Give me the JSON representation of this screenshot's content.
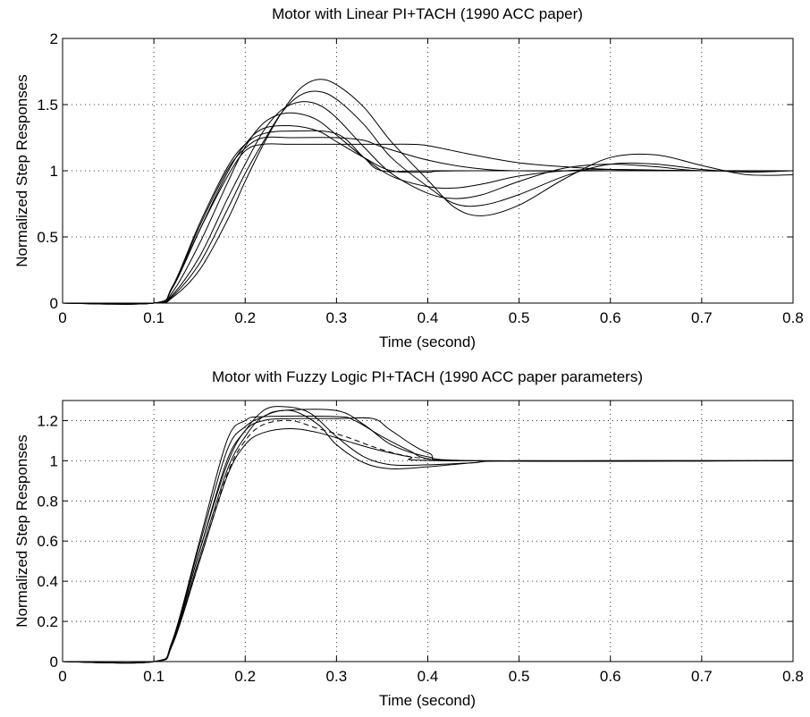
{
  "chart_data": [
    {
      "type": "line",
      "title": "Motor with Linear PI+TACH (1990 ACC paper)",
      "xlabel": "Time (second)",
      "ylabel": "Normalized Step Responses",
      "xlim": [
        0,
        0.8
      ],
      "ylim": [
        0,
        2
      ],
      "xticks": [
        "0",
        "0.1",
        "0.2",
        "0.3",
        "0.4",
        "0.5",
        "0.6",
        "0.7",
        "0.8"
      ],
      "yticks": [
        "0",
        "0.5",
        "1",
        "1.5",
        "2"
      ],
      "grid": true,
      "series": [
        {
          "values": [
            [
              0,
              0
            ],
            [
              0.1,
              0
            ],
            [
              0.12,
              0.12
            ],
            [
              0.15,
              0.55
            ],
            [
              0.18,
              0.95
            ],
            [
              0.2,
              1.15
            ],
            [
              0.22,
              1.2
            ],
            [
              0.25,
              1.2
            ],
            [
              0.3,
              1.2
            ],
            [
              0.35,
              1.2
            ],
            [
              0.38,
              1.2
            ],
            [
              0.4,
              1.19
            ],
            [
              0.45,
              1.12
            ],
            [
              0.5,
              1.06
            ],
            [
              0.55,
              1.03
            ],
            [
              0.6,
              1.01
            ],
            [
              0.7,
              1.0
            ],
            [
              0.8,
              1.0
            ]
          ]
        },
        {
          "values": [
            [
              0,
              0
            ],
            [
              0.1,
              0
            ],
            [
              0.12,
              0.12
            ],
            [
              0.15,
              0.58
            ],
            [
              0.18,
              1.0
            ],
            [
              0.2,
              1.17
            ],
            [
              0.22,
              1.25
            ],
            [
              0.25,
              1.25
            ],
            [
              0.3,
              1.25
            ],
            [
              0.33,
              1.23
            ],
            [
              0.35,
              1.18
            ],
            [
              0.4,
              1.08
            ],
            [
              0.45,
              1.02
            ],
            [
              0.5,
              1.0
            ],
            [
              0.6,
              1.0
            ],
            [
              0.8,
              1.0
            ]
          ]
        },
        {
          "values": [
            [
              0,
              0
            ],
            [
              0.1,
              0
            ],
            [
              0.12,
              0.12
            ],
            [
              0.15,
              0.6
            ],
            [
              0.18,
              1.02
            ],
            [
              0.2,
              1.2
            ],
            [
              0.22,
              1.28
            ],
            [
              0.25,
              1.3
            ],
            [
              0.3,
              1.28
            ],
            [
              0.33,
              1.1
            ],
            [
              0.35,
              1.0
            ],
            [
              0.4,
              1.0
            ],
            [
              0.6,
              1.0
            ],
            [
              0.8,
              1.0
            ]
          ]
        },
        {
          "values": [
            [
              0,
              0
            ],
            [
              0.1,
              0
            ],
            [
              0.12,
              0.11
            ],
            [
              0.15,
              0.55
            ],
            [
              0.18,
              0.98
            ],
            [
              0.2,
              1.2
            ],
            [
              0.22,
              1.32
            ],
            [
              0.25,
              1.34
            ],
            [
              0.28,
              1.3
            ],
            [
              0.3,
              1.22
            ],
            [
              0.33,
              1.1
            ],
            [
              0.36,
              1.0
            ],
            [
              0.4,
              0.99
            ],
            [
              0.45,
              1.0
            ],
            [
              0.8,
              1.0
            ]
          ]
        },
        {
          "values": [
            [
              0,
              0
            ],
            [
              0.1,
              0
            ],
            [
              0.12,
              0.08
            ],
            [
              0.15,
              0.45
            ],
            [
              0.18,
              0.9
            ],
            [
              0.2,
              1.18
            ],
            [
              0.22,
              1.36
            ],
            [
              0.24,
              1.43
            ],
            [
              0.26,
              1.43
            ],
            [
              0.28,
              1.38
            ],
            [
              0.3,
              1.27
            ],
            [
              0.33,
              1.1
            ],
            [
              0.36,
              0.96
            ],
            [
              0.4,
              0.88
            ],
            [
              0.43,
              0.87
            ],
            [
              0.46,
              0.9
            ],
            [
              0.5,
              0.96
            ],
            [
              0.55,
              1.0
            ],
            [
              0.6,
              1.01
            ],
            [
              0.7,
              1.0
            ],
            [
              0.8,
              1.0
            ]
          ]
        },
        {
          "values": [
            [
              0,
              0
            ],
            [
              0.1,
              0
            ],
            [
              0.12,
              0.06
            ],
            [
              0.15,
              0.35
            ],
            [
              0.18,
              0.78
            ],
            [
              0.2,
              1.05
            ],
            [
              0.22,
              1.3
            ],
            [
              0.24,
              1.46
            ],
            [
              0.26,
              1.52
            ],
            [
              0.28,
              1.5
            ],
            [
              0.3,
              1.4
            ],
            [
              0.33,
              1.18
            ],
            [
              0.36,
              0.98
            ],
            [
              0.4,
              0.83
            ],
            [
              0.43,
              0.79
            ],
            [
              0.46,
              0.82
            ],
            [
              0.5,
              0.92
            ],
            [
              0.55,
              1.02
            ],
            [
              0.6,
              1.05
            ],
            [
              0.65,
              1.03
            ],
            [
              0.7,
              1.0
            ],
            [
              0.8,
              1.0
            ]
          ]
        },
        {
          "values": [
            [
              0,
              0
            ],
            [
              0.1,
              0
            ],
            [
              0.12,
              0.05
            ],
            [
              0.15,
              0.3
            ],
            [
              0.18,
              0.7
            ],
            [
              0.2,
              0.98
            ],
            [
              0.22,
              1.22
            ],
            [
              0.24,
              1.44
            ],
            [
              0.26,
              1.57
            ],
            [
              0.28,
              1.6
            ],
            [
              0.3,
              1.54
            ],
            [
              0.33,
              1.35
            ],
            [
              0.36,
              1.1
            ],
            [
              0.4,
              0.88
            ],
            [
              0.43,
              0.75
            ],
            [
              0.46,
              0.74
            ],
            [
              0.5,
              0.82
            ],
            [
              0.55,
              0.96
            ],
            [
              0.6,
              1.05
            ],
            [
              0.65,
              1.05
            ],
            [
              0.7,
              1.01
            ],
            [
              0.75,
              0.99
            ],
            [
              0.8,
              1.0
            ]
          ]
        },
        {
          "values": [
            [
              0,
              0
            ],
            [
              0.1,
              0
            ],
            [
              0.12,
              0.04
            ],
            [
              0.15,
              0.25
            ],
            [
              0.18,
              0.62
            ],
            [
              0.2,
              0.92
            ],
            [
              0.22,
              1.2
            ],
            [
              0.24,
              1.44
            ],
            [
              0.26,
              1.62
            ],
            [
              0.28,
              1.69
            ],
            [
              0.3,
              1.65
            ],
            [
              0.33,
              1.48
            ],
            [
              0.36,
              1.22
            ],
            [
              0.4,
              0.93
            ],
            [
              0.43,
              0.72
            ],
            [
              0.46,
              0.66
            ],
            [
              0.5,
              0.74
            ],
            [
              0.55,
              0.94
            ],
            [
              0.6,
              1.1
            ],
            [
              0.65,
              1.12
            ],
            [
              0.7,
              1.04
            ],
            [
              0.75,
              0.97
            ],
            [
              0.8,
              0.97
            ]
          ]
        }
      ]
    },
    {
      "type": "line",
      "title": "Motor with Fuzzy Logic PI+TACH (1990 ACC paper parameters)",
      "xlabel": "Time (second)",
      "ylabel": "Normalized Step Responses",
      "xlim": [
        0,
        0.8
      ],
      "ylim": [
        0,
        1.3
      ],
      "xticks": [
        "0",
        "0.1",
        "0.2",
        "0.3",
        "0.4",
        "0.5",
        "0.6",
        "0.7",
        "0.8"
      ],
      "yticks": [
        "0",
        "0.2",
        "0.4",
        "0.6",
        "0.8",
        "1",
        "1.2"
      ],
      "grid": true,
      "series": [
        {
          "values": [
            [
              0,
              0
            ],
            [
              0.1,
              0
            ],
            [
              0.12,
              0.1
            ],
            [
              0.15,
              0.6
            ],
            [
              0.18,
              1.1
            ],
            [
              0.2,
              1.2
            ],
            [
              0.22,
              1.22
            ],
            [
              0.3,
              1.22
            ],
            [
              0.32,
              1.2
            ],
            [
              0.35,
              1.12
            ],
            [
              0.38,
              1.05
            ],
            [
              0.4,
              1.01
            ],
            [
              0.45,
              1.0
            ],
            [
              0.8,
              1.0
            ]
          ]
        },
        {
          "values": [
            [
              0,
              0
            ],
            [
              0.1,
              0
            ],
            [
              0.12,
              0.1
            ],
            [
              0.15,
              0.58
            ],
            [
              0.18,
              1.05
            ],
            [
              0.2,
              1.17
            ],
            [
              0.22,
              1.22
            ],
            [
              0.24,
              1.25
            ],
            [
              0.3,
              1.25
            ],
            [
              0.33,
              1.18
            ],
            [
              0.36,
              1.08
            ],
            [
              0.4,
              1.02
            ],
            [
              0.45,
              1.0
            ],
            [
              0.8,
              1.0
            ]
          ]
        },
        {
          "values": [
            [
              0,
              0
            ],
            [
              0.1,
              0
            ],
            [
              0.12,
              0.1
            ],
            [
              0.15,
              0.55
            ],
            [
              0.18,
              1.0
            ],
            [
              0.2,
              1.15
            ],
            [
              0.22,
              1.25
            ],
            [
              0.24,
              1.27
            ],
            [
              0.27,
              1.24
            ],
            [
              0.3,
              1.12
            ],
            [
              0.33,
              1.02
            ],
            [
              0.36,
              0.98
            ],
            [
              0.4,
              0.98
            ],
            [
              0.45,
              0.99
            ],
            [
              0.5,
              1.0
            ],
            [
              0.8,
              1.0
            ]
          ]
        },
        {
          "values": [
            [
              0,
              0
            ],
            [
              0.1,
              0
            ],
            [
              0.12,
              0.09
            ],
            [
              0.15,
              0.52
            ],
            [
              0.18,
              0.95
            ],
            [
              0.2,
              1.12
            ],
            [
              0.22,
              1.22
            ],
            [
              0.25,
              1.25
            ],
            [
              0.28,
              1.18
            ],
            [
              0.3,
              1.08
            ],
            [
              0.33,
              0.99
            ],
            [
              0.36,
              0.96
            ],
            [
              0.4,
              0.97
            ],
            [
              0.45,
              0.99
            ],
            [
              0.5,
              1.0
            ],
            [
              0.8,
              1.0
            ]
          ]
        },
        {
          "values": [
            [
              0,
              0
            ],
            [
              0.1,
              0
            ],
            [
              0.12,
              0.08
            ],
            [
              0.15,
              0.5
            ],
            [
              0.18,
              0.92
            ],
            [
              0.2,
              1.08
            ],
            [
              0.22,
              1.14
            ],
            [
              0.25,
              1.16
            ],
            [
              0.28,
              1.14
            ],
            [
              0.31,
              1.1
            ],
            [
              0.34,
              1.06
            ],
            [
              0.38,
              1.02
            ],
            [
              0.42,
              1.0
            ],
            [
              0.8,
              1.0
            ]
          ]
        },
        {
          "values": [
            [
              0,
              0
            ],
            [
              0.1,
              0
            ],
            [
              0.12,
              0.09
            ],
            [
              0.15,
              0.55
            ],
            [
              0.18,
              0.98
            ],
            [
              0.2,
              1.15
            ],
            [
              0.22,
              1.2
            ],
            [
              0.25,
              1.21
            ],
            [
              0.3,
              1.21
            ],
            [
              0.34,
              1.21
            ],
            [
              0.36,
              1.15
            ],
            [
              0.4,
              1.04
            ],
            [
              0.45,
              1.0
            ],
            [
              0.8,
              1.0
            ]
          ]
        },
        {
          "dashed": true,
          "values": [
            [
              0,
              0
            ],
            [
              0.1,
              0
            ],
            [
              0.12,
              0.09
            ],
            [
              0.15,
              0.5
            ],
            [
              0.18,
              0.93
            ],
            [
              0.2,
              1.1
            ],
            [
              0.22,
              1.18
            ],
            [
              0.25,
              1.2
            ],
            [
              0.28,
              1.16
            ],
            [
              0.31,
              1.12
            ],
            [
              0.34,
              1.07
            ],
            [
              0.37,
              1.03
            ],
            [
              0.4,
              1.01
            ],
            [
              0.45,
              1.0
            ],
            [
              0.8,
              1.0
            ]
          ]
        }
      ]
    }
  ]
}
